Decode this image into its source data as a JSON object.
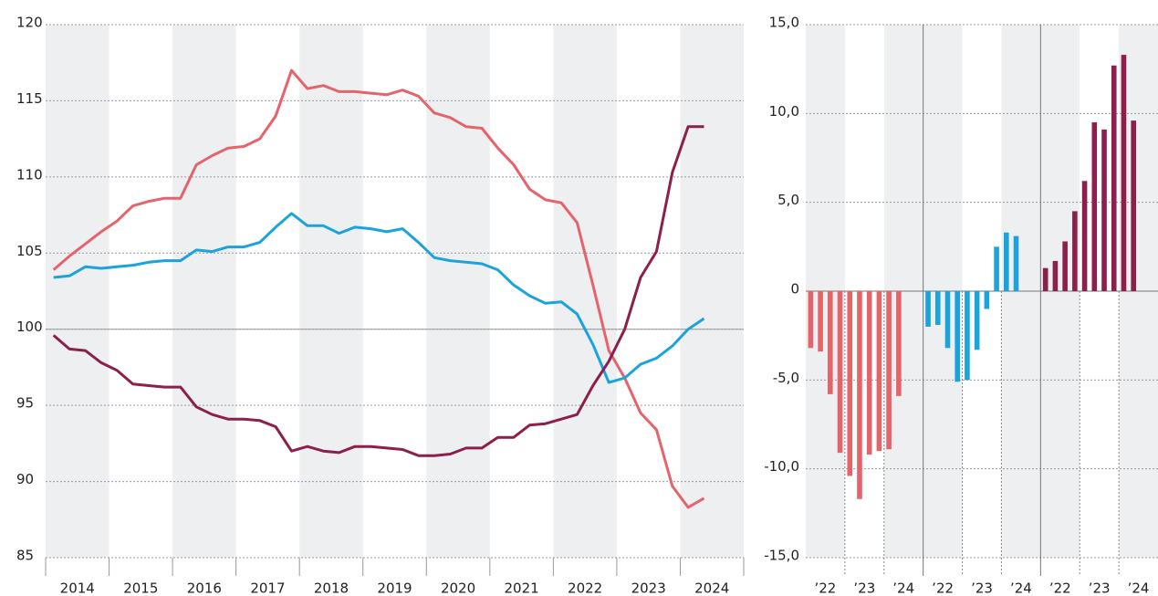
{
  "chart_data": [
    {
      "type": "line",
      "x": [
        2014.125,
        2014.375,
        2014.625,
        2014.875,
        2015.125,
        2015.375,
        2015.625,
        2015.875,
        2016.125,
        2016.375,
        2016.625,
        2016.875,
        2017.125,
        2017.375,
        2017.625,
        2017.875,
        2018.125,
        2018.375,
        2018.625,
        2018.875,
        2019.125,
        2019.375,
        2019.625,
        2019.875,
        2020.125,
        2020.375,
        2020.625,
        2020.875,
        2021.125,
        2021.375,
        2021.625,
        2021.875,
        2022.125,
        2022.375,
        2022.625,
        2022.875,
        2023.125,
        2023.375,
        2023.625,
        2023.875,
        2024.125,
        2024.375
      ],
      "xlim": [
        2014,
        2025
      ],
      "xticks": [
        {
          "value": 2014.5,
          "label": "2014"
        },
        {
          "value": 2015.5,
          "label": "2015"
        },
        {
          "value": 2016.5,
          "label": "2016"
        },
        {
          "value": 2017.5,
          "label": "2017"
        },
        {
          "value": 2018.5,
          "label": "2018"
        },
        {
          "value": 2019.5,
          "label": "2019"
        },
        {
          "value": 2020.5,
          "label": "2020"
        },
        {
          "value": 2021.5,
          "label": "2021"
        },
        {
          "value": 2022.5,
          "label": "2022"
        },
        {
          "value": 2023.5,
          "label": "2023"
        },
        {
          "value": 2024.5,
          "label": "2024"
        }
      ],
      "ylim": [
        85,
        120
      ],
      "yticks": [
        85,
        90,
        95,
        100,
        105,
        110,
        115,
        120
      ],
      "grid": true,
      "series": [
        {
          "color": "#e5636b",
          "values": [
            103.9,
            104.8,
            105.6,
            106.4,
            107.1,
            108.1,
            108.4,
            108.6,
            108.6,
            110.8,
            111.4,
            111.9,
            112.0,
            112.5,
            114.0,
            117.0,
            115.8,
            116.0,
            115.6,
            115.6,
            115.5,
            115.4,
            115.7,
            115.3,
            114.2,
            113.9,
            113.3,
            113.2,
            111.9,
            110.8,
            109.2,
            108.5,
            108.3,
            107.0,
            102.9,
            98.6,
            96.8,
            94.5,
            93.4,
            89.7,
            88.3,
            88.9
          ]
        },
        {
          "color": "#1ba3dc",
          "values": [
            103.4,
            103.5,
            104.1,
            104.0,
            104.1,
            104.2,
            104.4,
            104.5,
            104.5,
            105.2,
            105.1,
            105.4,
            105.4,
            105.7,
            106.7,
            107.6,
            106.8,
            106.8,
            106.3,
            106.7,
            106.6,
            106.4,
            106.6,
            105.7,
            104.7,
            104.5,
            104.4,
            104.3,
            103.9,
            102.9,
            102.2,
            101.7,
            101.8,
            101.0,
            99.0,
            96.5,
            96.8,
            97.7,
            98.1,
            98.9,
            100.0,
            100.7
          ]
        },
        {
          "color": "#8c1f4b",
          "values": [
            99.6,
            98.7,
            98.6,
            97.8,
            97.3,
            96.4,
            96.3,
            96.2,
            96.2,
            94.9,
            94.4,
            94.1,
            94.1,
            94.0,
            93.6,
            92.0,
            92.3,
            92.0,
            91.9,
            92.3,
            92.3,
            92.2,
            92.1,
            91.7,
            91.7,
            91.8,
            92.2,
            92.2,
            92.9,
            92.9,
            93.7,
            93.8,
            94.1,
            94.4,
            96.3,
            97.9,
            100.0,
            103.4,
            105.1,
            110.3,
            113.3,
            113.3
          ]
        }
      ]
    },
    {
      "type": "bar",
      "x": [
        2022.125,
        2022.375,
        2022.625,
        2022.875,
        2023.125,
        2023.375,
        2023.625,
        2023.875,
        2024.125,
        2024.375
      ],
      "xlim": [
        2022,
        2025
      ],
      "xticks": [
        {
          "value": 2022.5,
          "label": "’22"
        },
        {
          "value": 2023.5,
          "label": "’23"
        },
        {
          "value": 2024.5,
          "label": "’24"
        }
      ],
      "ylim": [
        -15,
        15
      ],
      "yticks": [
        {
          "value": -15,
          "label": "-15,0"
        },
        {
          "value": -10,
          "label": "-10,0"
        },
        {
          "value": -5,
          "label": "-5,0"
        },
        0,
        {
          "value": 5,
          "label": "5,0"
        },
        {
          "value": 10,
          "label": "10,0"
        },
        {
          "value": 15,
          "label": "15,0"
        }
      ],
      "grid": true,
      "series": [
        {
          "color": "#e5636b",
          "values": [
            -3.2,
            -3.4,
            -5.8,
            -9.1,
            -10.4,
            -11.7,
            -9.2,
            -9.0,
            -8.9,
            -5.9
          ]
        },
        {
          "color": "#1ba3dc",
          "values": [
            -2.0,
            -1.9,
            -3.2,
            -5.1,
            -5.0,
            -3.3,
            -1.0,
            2.5,
            3.3,
            3.1
          ]
        },
        {
          "color": "#8c1f4b",
          "values": [
            1.3,
            1.7,
            2.8,
            4.5,
            6.2,
            9.5,
            9.1,
            12.7,
            13.3,
            9.6
          ]
        }
      ]
    }
  ]
}
